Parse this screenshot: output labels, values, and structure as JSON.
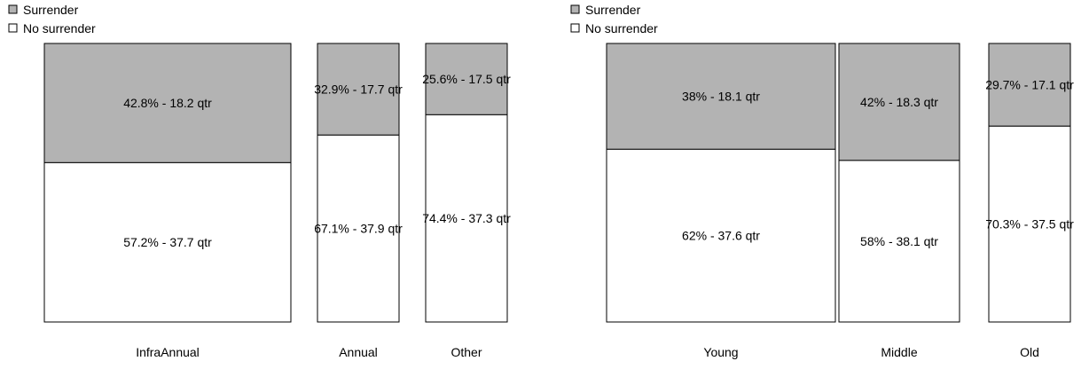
{
  "colors": {
    "surrender_fill": "#b3b3b3",
    "no_surrender_fill": "#ffffff",
    "stroke": "#000000"
  },
  "chart_data": [
    {
      "type": "bar",
      "subtype": "mosaic",
      "legend": {
        "position": "top-left",
        "entries": [
          "Surrender",
          "No surrender"
        ]
      },
      "categories": [
        "InfraAnnual",
        "Annual",
        "Other"
      ],
      "series": [
        {
          "name": "Surrender",
          "values": [
            42.8,
            32.9,
            25.6
          ],
          "labels": [
            "42.8% - 18.2 qtr",
            "32.9% - 17.7 qtr",
            "25.6% - 17.5 qtr"
          ]
        },
        {
          "name": "No surrender",
          "values": [
            57.2,
            67.1,
            74.4
          ],
          "labels": [
            "57.2% - 37.7 qtr",
            "67.1% - 37.9 qtr",
            "74.4% - 37.3 qtr"
          ]
        }
      ],
      "ylim": [
        0,
        100
      ]
    },
    {
      "type": "bar",
      "subtype": "mosaic",
      "legend": {
        "position": "top-left",
        "entries": [
          "Surrender",
          "No surrender"
        ]
      },
      "categories": [
        "Young",
        "Middle",
        "Old"
      ],
      "series": [
        {
          "name": "Surrender",
          "values": [
            38,
            42,
            29.7
          ],
          "labels": [
            "38% - 18.1 qtr",
            "42% - 18.3 qtr",
            "29.7% - 17.1 qtr"
          ]
        },
        {
          "name": "No surrender",
          "values": [
            62,
            58,
            70.3
          ],
          "labels": [
            "62% - 37.6 qtr",
            "58% - 38.1 qtr",
            "70.3% - 37.5 qtr"
          ]
        }
      ],
      "ylim": [
        0,
        100
      ]
    }
  ]
}
